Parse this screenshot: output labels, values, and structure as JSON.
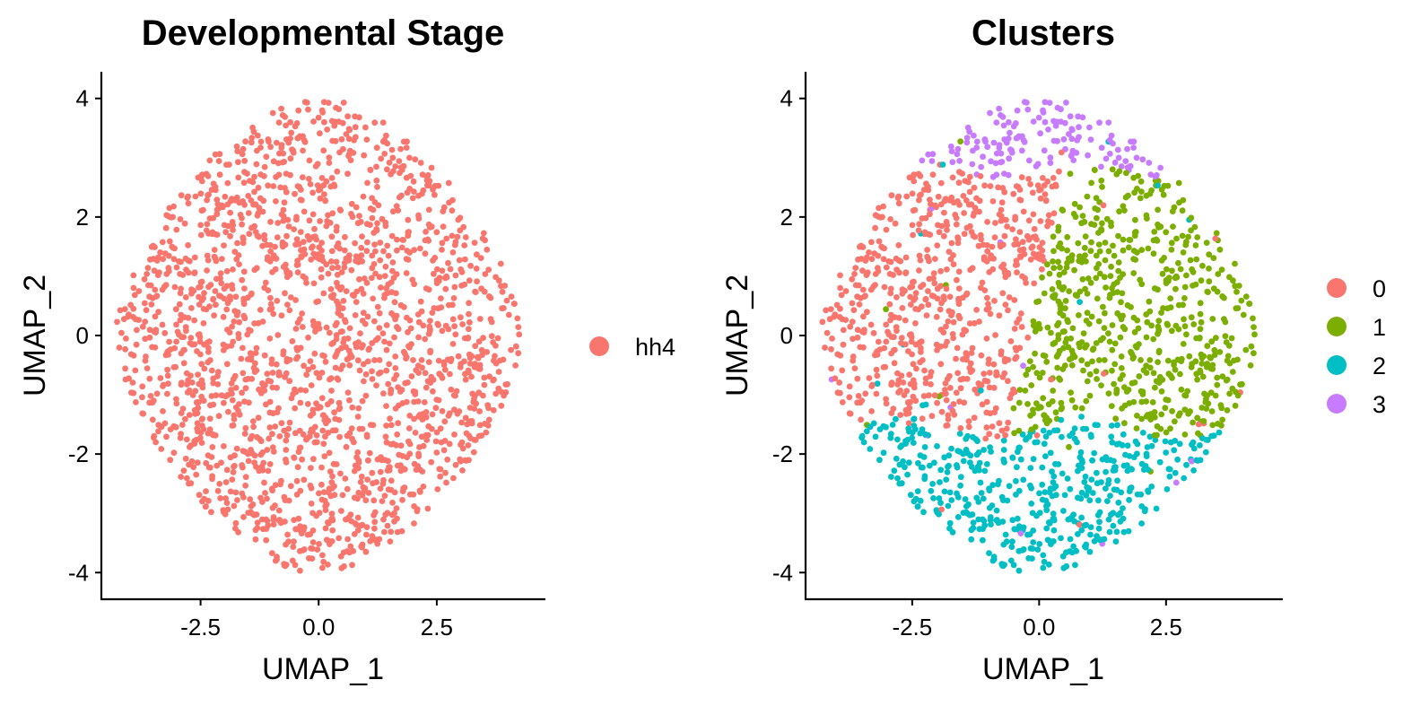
{
  "chart_data": [
    {
      "type": "scatter",
      "title": "Developmental Stage",
      "xlabel": "UMAP_1",
      "ylabel": "UMAP_2",
      "xlim": [
        -4.6,
        4.8
      ],
      "ylim": [
        -4.45,
        4.45
      ],
      "xticks": [
        -2.5,
        0.0,
        2.5
      ],
      "xtick_labels": [
        "-2.5",
        "0.0",
        "2.5"
      ],
      "yticks": [
        4,
        2,
        0,
        -2,
        -4
      ],
      "ytick_labels": [
        "4",
        "2",
        "0",
        "-2",
        "-4"
      ],
      "grid": false,
      "legend_placement": "right",
      "series": [
        {
          "name": "hh4",
          "color": "#F8766D",
          "n_points": 1900,
          "description": "cells fill a rounded diamond-shaped cloud spanning about x -4.3..4.3 and y -4..4"
        }
      ]
    },
    {
      "type": "scatter",
      "title": "Clusters",
      "xlabel": "UMAP_1",
      "ylabel": "UMAP_2",
      "xlim": [
        -4.6,
        4.8
      ],
      "ylim": [
        -4.45,
        4.45
      ],
      "xticks": [
        -2.5,
        0.0,
        2.5
      ],
      "xtick_labels": [
        "-2.5",
        "0.0",
        "2.5"
      ],
      "yticks": [
        4,
        2,
        0,
        -2,
        -4
      ],
      "ytick_labels": [
        "4",
        "2",
        "0",
        "-2",
        "-4"
      ],
      "grid": false,
      "legend_placement": "right",
      "series": [
        {
          "name": "0",
          "color": "#F8766D",
          "region": "left / upper-left of cloud"
        },
        {
          "name": "1",
          "color": "#7CAE00",
          "region": "right / upper-right of cloud"
        },
        {
          "name": "2",
          "color": "#00BFC4",
          "region": "bottom of cloud (y below about -1.5)"
        },
        {
          "name": "3",
          "color": "#C77CFF",
          "region": "top of cloud (y above about 2.8)"
        }
      ]
    }
  ]
}
